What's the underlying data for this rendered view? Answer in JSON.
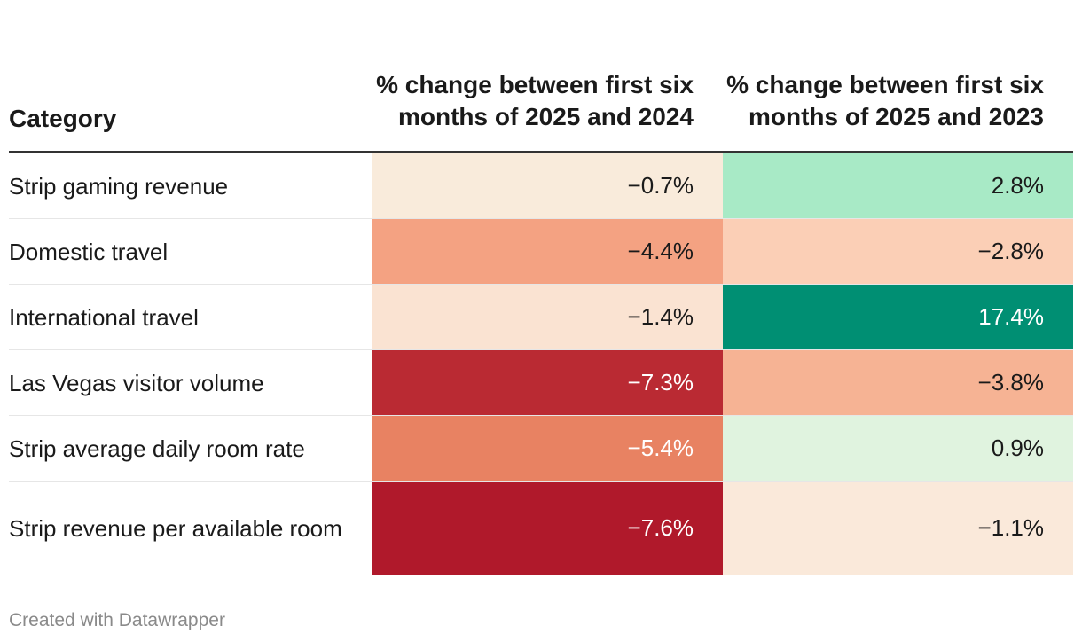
{
  "chart_data": {
    "type": "table",
    "columns": [
      "Category",
      "% change between first six months of 2025 and 2024",
      "% change between first six months of 2025 and 2023"
    ],
    "rows": [
      {
        "category": "Strip gaming revenue",
        "v2024": "−0.7%",
        "v2023": "2.8%",
        "n2024": -0.7,
        "n2023": 2.8,
        "bg2024": "#f9ebdb",
        "bg2023": "#a8eac6",
        "fg2024": "#1a1a1a",
        "fg2023": "#1a1a1a"
      },
      {
        "category": "Domestic travel",
        "v2024": "−4.4%",
        "v2023": "−2.8%",
        "n2024": -4.4,
        "n2023": -2.8,
        "bg2024": "#f4a282",
        "bg2023": "#fbcfb6",
        "fg2024": "#1a1a1a",
        "fg2023": "#1a1a1a"
      },
      {
        "category": "International travel",
        "v2024": "−1.4%",
        "v2023": "17.4%",
        "n2024": -1.4,
        "n2023": 17.4,
        "bg2024": "#fae3d2",
        "bg2023": "#008f73",
        "fg2024": "#1a1a1a",
        "fg2023": "#ffffff"
      },
      {
        "category": "Las Vegas visitor volume",
        "v2024": "−7.3%",
        "v2023": "−3.8%",
        "n2024": -7.3,
        "n2023": -3.8,
        "bg2024": "#ba2a33",
        "bg2023": "#f6b394",
        "fg2024": "#ffffff",
        "fg2023": "#1a1a1a"
      },
      {
        "category": "Strip average daily room rate",
        "v2024": "−5.4%",
        "v2023": "0.9%",
        "n2024": -5.4,
        "n2023": 0.9,
        "bg2024": "#e88262",
        "bg2023": "#e0f3df",
        "fg2024": "#ffffff",
        "fg2023": "#1a1a1a"
      },
      {
        "category": "Strip revenue per available room",
        "v2024": "−7.6%",
        "v2023": "−1.1%",
        "n2024": -7.6,
        "n2023": -1.1,
        "bg2024": "#b0192b",
        "bg2023": "#fae9da",
        "fg2024": "#ffffff",
        "fg2023": "#1a1a1a"
      }
    ]
  },
  "footer": "Created with Datawrapper"
}
